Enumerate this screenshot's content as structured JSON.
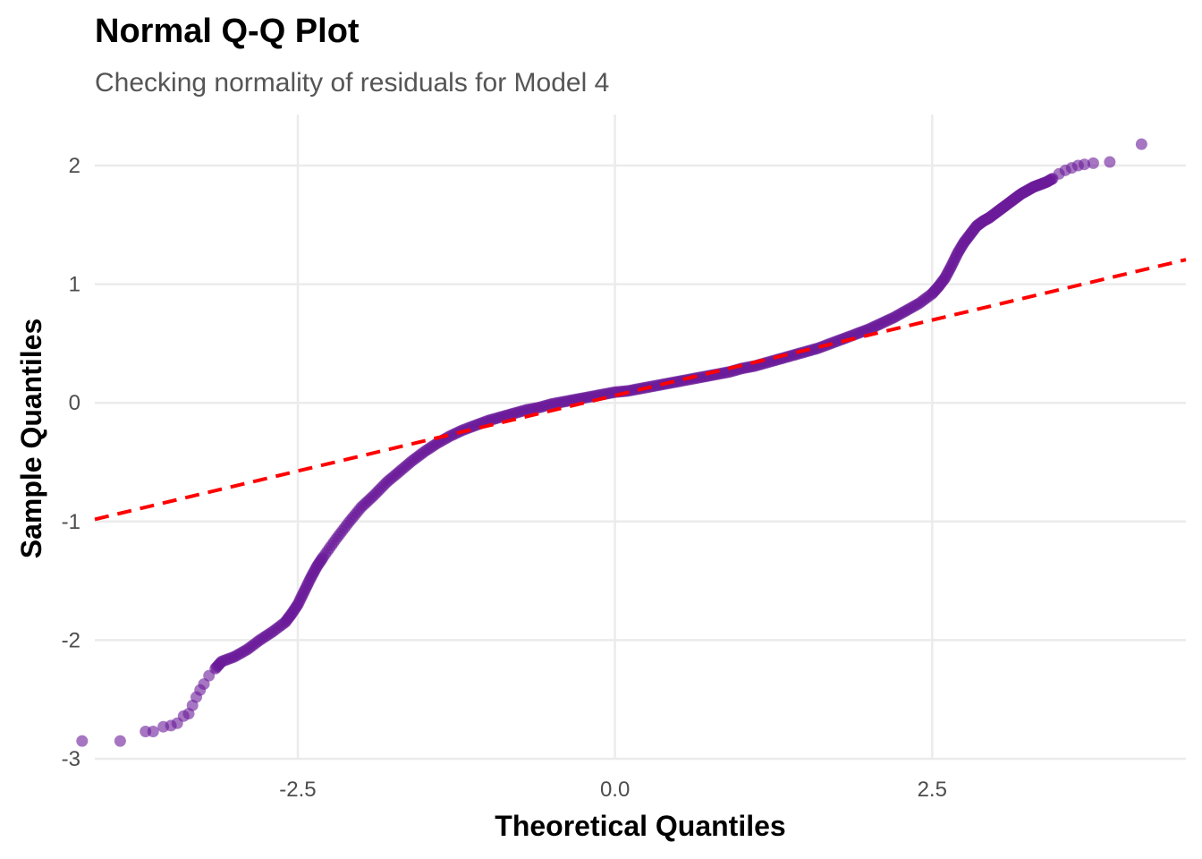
{
  "chart_data": {
    "type": "scatter",
    "title": "Normal Q-Q Plot",
    "subtitle": "Checking normality of residuals for Model 4",
    "xlabel": "Theoretical Quantiles",
    "ylabel": "Sample Quantiles",
    "xlim": [
      -4.1,
      4.5
    ],
    "ylim": [
      -3.0,
      2.43
    ],
    "x_ticks": [
      -2.5,
      0.0,
      2.5
    ],
    "x_tick_labels": [
      "-2.5",
      "0.0",
      "2.5"
    ],
    "y_ticks": [
      -3,
      -2,
      -1,
      0,
      1,
      2
    ],
    "y_tick_labels": [
      "-3",
      "-2",
      "-1",
      "0",
      "1",
      "2"
    ],
    "grid": true,
    "point_color": "#6a1b9a",
    "reference_line": {
      "intercept": 0.0617,
      "slope": 0.2545,
      "color": "#ff0000",
      "style": "dashed"
    },
    "points": [
      [
        -4.2,
        -2.85
      ],
      [
        -3.9,
        -2.85
      ],
      [
        -3.7,
        -2.77
      ],
      [
        -3.64,
        -2.77
      ],
      [
        -3.56,
        -2.73
      ],
      [
        -3.5,
        -2.72
      ],
      [
        -3.45,
        -2.7
      ],
      [
        -3.4,
        -2.64
      ],
      [
        -3.36,
        -2.62
      ],
      [
        -3.33,
        -2.55
      ],
      [
        -3.3,
        -2.48
      ],
      [
        -3.27,
        -2.42
      ],
      [
        -3.24,
        -2.37
      ],
      [
        -3.2,
        -2.3
      ],
      [
        -3.15,
        -2.24
      ],
      [
        -3.1,
        -2.18
      ],
      [
        -3.0,
        -2.14
      ],
      [
        -2.9,
        -2.08
      ],
      [
        -2.8,
        -2.0
      ],
      [
        -2.7,
        -1.93
      ],
      [
        -2.6,
        -1.85
      ],
      [
        -2.55,
        -1.78
      ],
      [
        -2.5,
        -1.7
      ],
      [
        -2.45,
        -1.59
      ],
      [
        -2.4,
        -1.48
      ],
      [
        -2.35,
        -1.38
      ],
      [
        -2.3,
        -1.3
      ],
      [
        -2.2,
        -1.15
      ],
      [
        -2.1,
        -1.01
      ],
      [
        -2.0,
        -0.88
      ],
      [
        -1.9,
        -0.78
      ],
      [
        -1.8,
        -0.67
      ],
      [
        -1.7,
        -0.58
      ],
      [
        -1.6,
        -0.49
      ],
      [
        -1.5,
        -0.41
      ],
      [
        -1.4,
        -0.34
      ],
      [
        -1.3,
        -0.28
      ],
      [
        -1.2,
        -0.23
      ],
      [
        -1.1,
        -0.19
      ],
      [
        -1.0,
        -0.15
      ],
      [
        -0.9,
        -0.12
      ],
      [
        -0.8,
        -0.09
      ],
      [
        -0.7,
        -0.06
      ],
      [
        -0.6,
        -0.04
      ],
      [
        -0.5,
        -0.01
      ],
      [
        -0.4,
        0.01
      ],
      [
        -0.3,
        0.03
      ],
      [
        -0.2,
        0.05
      ],
      [
        -0.1,
        0.07
      ],
      [
        0.0,
        0.09
      ],
      [
        0.1,
        0.1
      ],
      [
        0.2,
        0.12
      ],
      [
        0.3,
        0.14
      ],
      [
        0.4,
        0.16
      ],
      [
        0.5,
        0.18
      ],
      [
        0.6,
        0.2
      ],
      [
        0.7,
        0.22
      ],
      [
        0.8,
        0.24
      ],
      [
        0.9,
        0.26
      ],
      [
        1.0,
        0.29
      ],
      [
        1.1,
        0.31
      ],
      [
        1.2,
        0.34
      ],
      [
        1.3,
        0.37
      ],
      [
        1.4,
        0.4
      ],
      [
        1.5,
        0.43
      ],
      [
        1.6,
        0.46
      ],
      [
        1.7,
        0.5
      ],
      [
        1.8,
        0.54
      ],
      [
        1.9,
        0.58
      ],
      [
        2.0,
        0.62
      ],
      [
        2.1,
        0.67
      ],
      [
        2.2,
        0.72
      ],
      [
        2.3,
        0.78
      ],
      [
        2.4,
        0.84
      ],
      [
        2.5,
        0.92
      ],
      [
        2.55,
        0.98
      ],
      [
        2.6,
        1.05
      ],
      [
        2.65,
        1.15
      ],
      [
        2.7,
        1.26
      ],
      [
        2.75,
        1.35
      ],
      [
        2.8,
        1.42
      ],
      [
        2.85,
        1.49
      ],
      [
        2.9,
        1.53
      ],
      [
        2.95,
        1.56
      ],
      [
        3.0,
        1.6
      ],
      [
        3.05,
        1.64
      ],
      [
        3.1,
        1.68
      ],
      [
        3.15,
        1.72
      ],
      [
        3.2,
        1.76
      ],
      [
        3.25,
        1.79
      ],
      [
        3.3,
        1.82
      ],
      [
        3.35,
        1.84
      ],
      [
        3.4,
        1.86
      ],
      [
        3.45,
        1.89
      ],
      [
        3.5,
        1.93
      ],
      [
        3.55,
        1.96
      ],
      [
        3.6,
        1.98
      ],
      [
        3.65,
        2.0
      ],
      [
        3.7,
        2.01
      ],
      [
        3.77,
        2.02
      ],
      [
        3.9,
        2.03
      ],
      [
        4.15,
        2.18
      ]
    ]
  }
}
